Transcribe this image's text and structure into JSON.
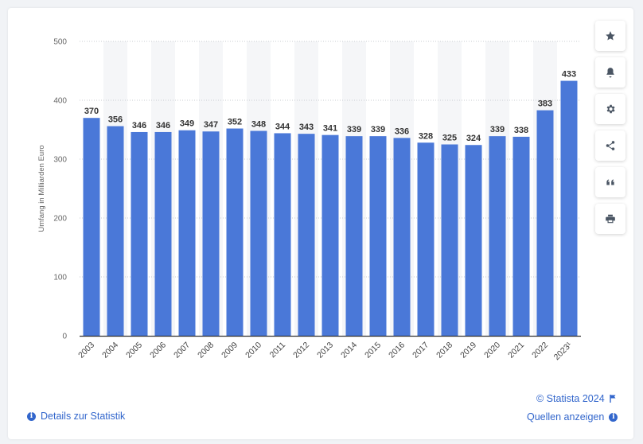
{
  "chart_data": {
    "type": "bar",
    "categories": [
      "2003",
      "2004",
      "2005",
      "2006",
      "2007",
      "2008",
      "2009",
      "2010",
      "2011",
      "2012",
      "2013",
      "2014",
      "2015",
      "2016",
      "2017",
      "2018",
      "2019",
      "2020",
      "2021",
      "2022",
      "2023¹"
    ],
    "values": [
      370,
      356,
      346,
      346,
      349,
      347,
      352,
      348,
      344,
      343,
      341,
      339,
      339,
      336,
      328,
      325,
      324,
      339,
      338,
      383,
      433
    ],
    "title": "",
    "xlabel": "",
    "ylabel": "Umfang in Milliarden Euro",
    "ylim": [
      0,
      500
    ],
    "yticks": [
      0,
      100,
      200,
      300,
      400,
      500
    ],
    "grid": "horizontal dotted",
    "bar_color": "#4a78d8"
  },
  "toolbar": {
    "buttons": [
      {
        "name": "favorite-button",
        "icon": "star-icon"
      },
      {
        "name": "notification-button",
        "icon": "bell-icon"
      },
      {
        "name": "settings-button",
        "icon": "gear-icon"
      },
      {
        "name": "share-button",
        "icon": "share-icon"
      },
      {
        "name": "cite-button",
        "icon": "quote-icon"
      },
      {
        "name": "print-button",
        "icon": "printer-icon"
      }
    ]
  },
  "footer": {
    "details_label": "Details zur Statistik",
    "copyright": "© Statista 2024",
    "sources_label": "Quellen anzeigen"
  },
  "colors": {
    "accent": "#3266cc",
    "bar": "#4a78d8",
    "band": "#f5f6f8"
  }
}
